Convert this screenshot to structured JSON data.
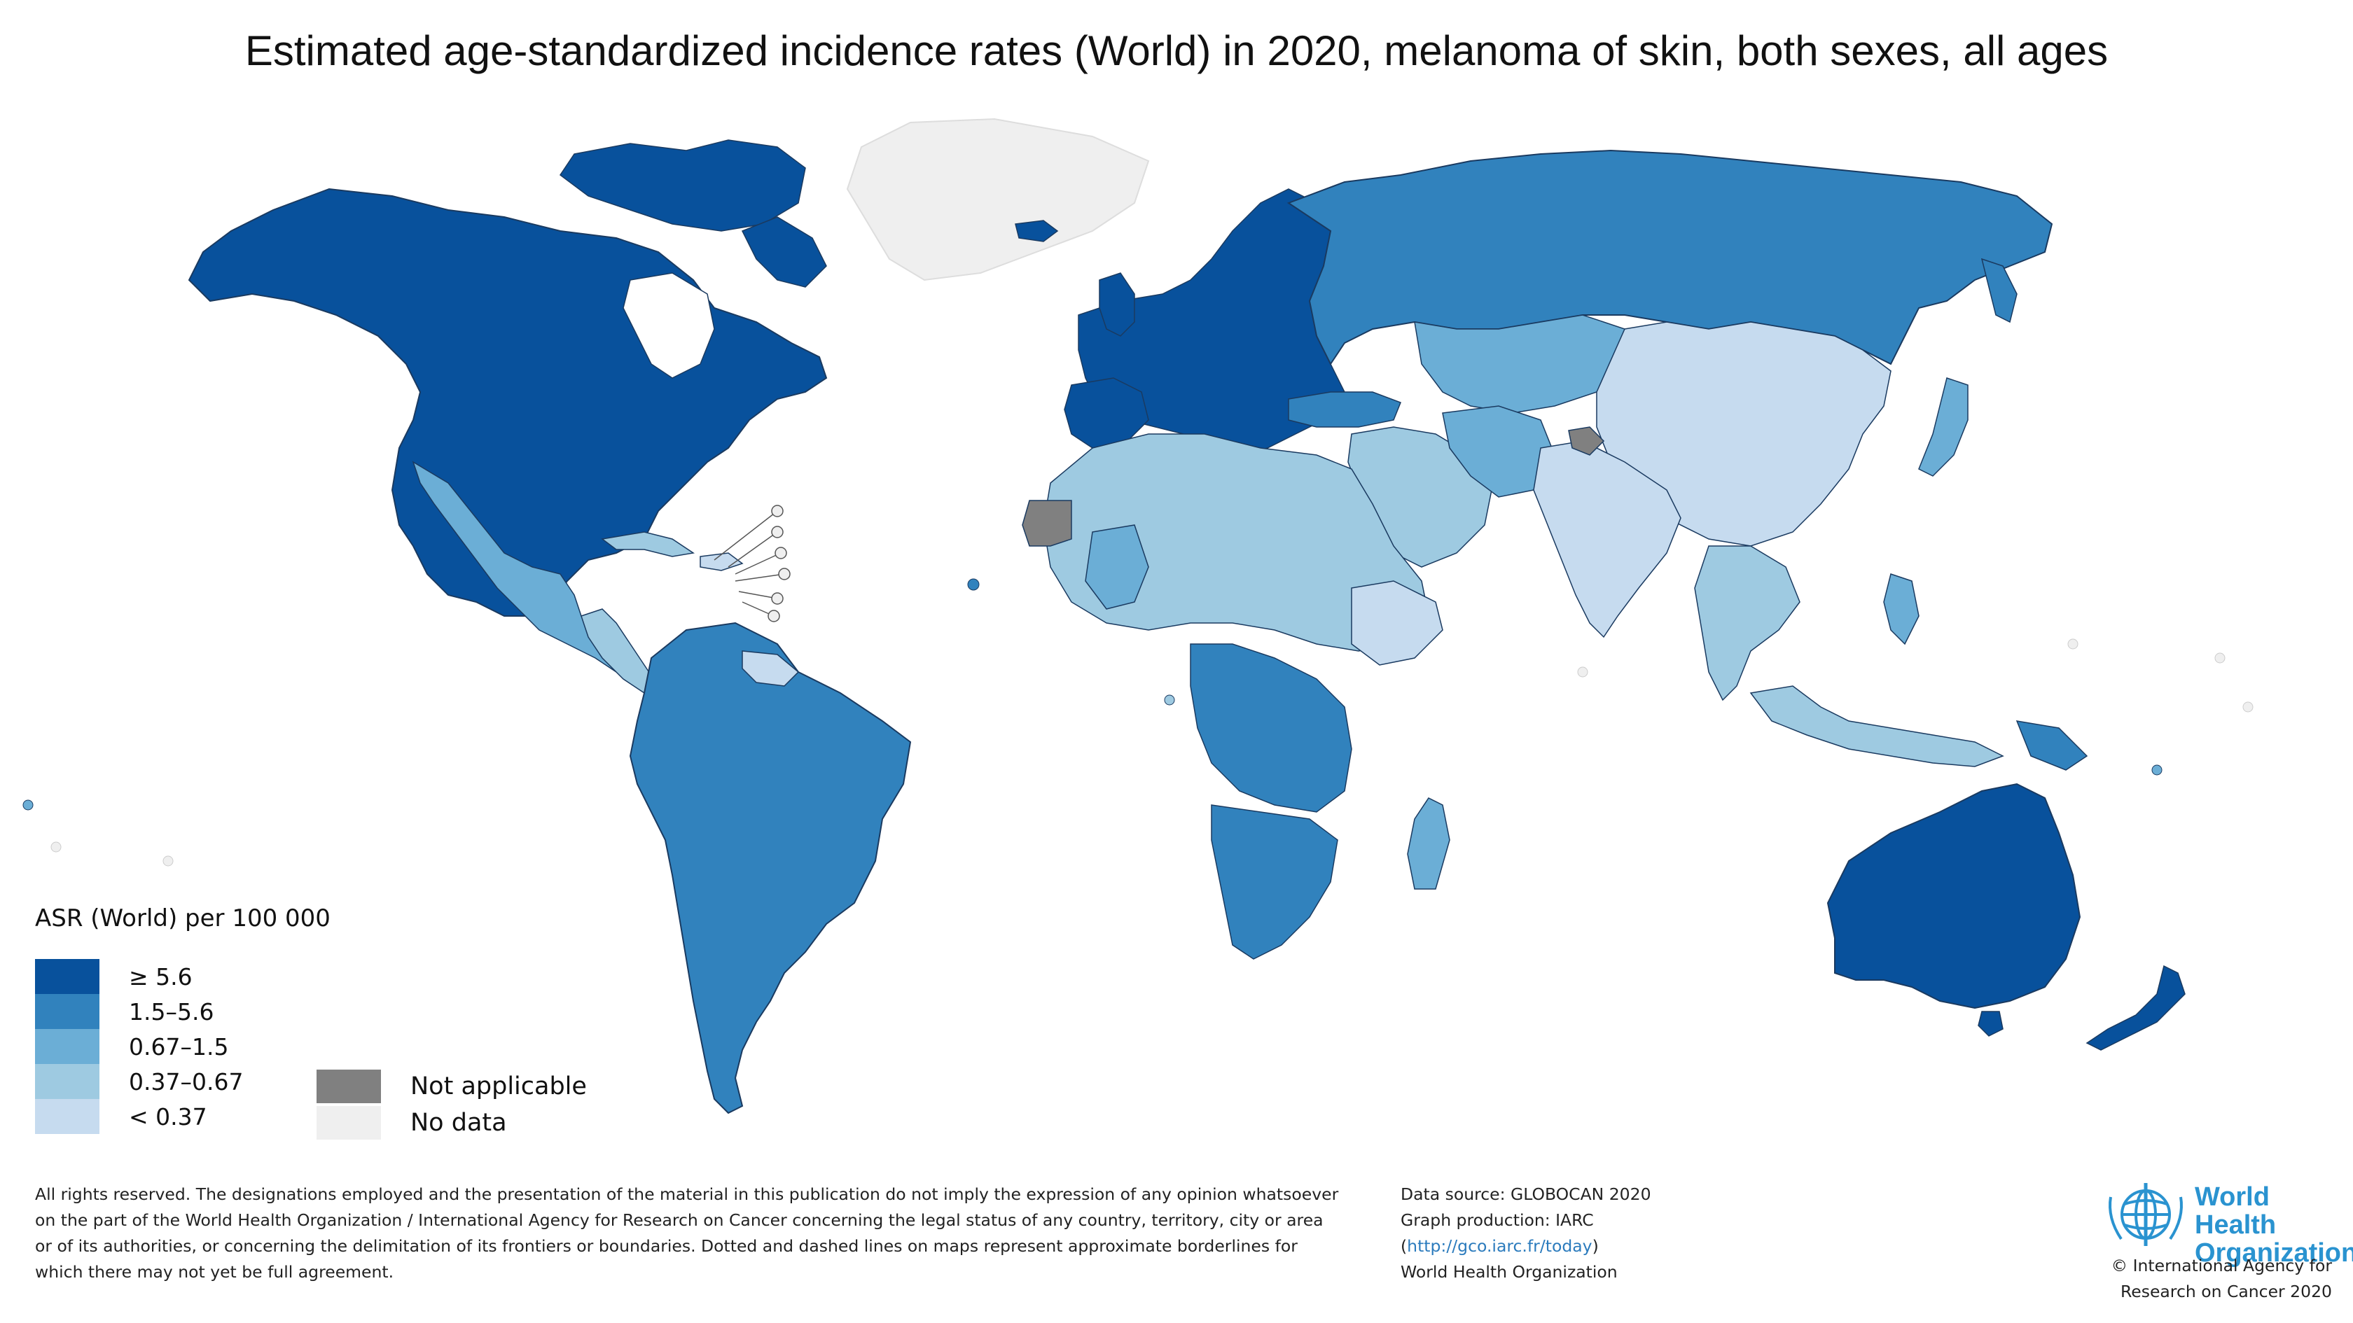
{
  "title": "Estimated age-standardized incidence rates (World) in 2020, melanoma of skin, both sexes, all ages",
  "legend": {
    "title": "ASR (World) per 100 000",
    "classes": [
      {
        "label": "≥ 5.6",
        "color": "#08519c"
      },
      {
        "label": "1.5–5.6",
        "color": "#3182bd"
      },
      {
        "label": "0.67–1.5",
        "color": "#6baed6"
      },
      {
        "label": "0.37–0.67",
        "color": "#9ecae1"
      },
      {
        "label": "< 0.37",
        "color": "#c6dbef"
      }
    ],
    "not_applicable": {
      "label": "Not applicable",
      "color": "#808080"
    },
    "no_data": {
      "label": "No data",
      "color": "#efefef"
    }
  },
  "regions": [
    {
      "name": "North America",
      "class": "≥ 5.6"
    },
    {
      "name": "Greenland",
      "class": "No data"
    },
    {
      "name": "Northern & Western Europe",
      "class": "≥ 5.6"
    },
    {
      "name": "Australia",
      "class": "≥ 5.6"
    },
    {
      "name": "New Zealand",
      "class": "≥ 5.6"
    },
    {
      "name": "Russia",
      "class": "1.5–5.6"
    },
    {
      "name": "South America",
      "class": "1.5–5.6"
    },
    {
      "name": "Southern Africa",
      "class": "1.5–5.6"
    },
    {
      "name": "Central Asia",
      "class": "0.67–1.5"
    },
    {
      "name": "Mexico",
      "class": "0.67–1.5"
    },
    {
      "name": "Northern Africa",
      "class": "0.37–0.67"
    },
    {
      "name": "China",
      "class": "< 0.37"
    },
    {
      "name": "India",
      "class": "< 0.37"
    },
    {
      "name": "Western Sahara",
      "class": "Not applicable"
    }
  ],
  "footer": {
    "disclaimer": [
      "All rights reserved. The designations employed and the presentation of the material in this publication do not imply the expression of any opinion whatsoever",
      "on the part of the World Health Organization / International Agency for Research on Cancer concerning the legal status of any country, territory, city or area",
      "or of its authorities, or concerning the delimitation of its frontiers or boundaries. Dotted and dashed lines on maps represent approximate borderlines for",
      "which there may not yet be full agreement."
    ],
    "source": {
      "line1": "Data source: GLOBOCAN 2020",
      "line2": "Graph production: IARC",
      "link_open": "(",
      "link": "http://gco.iarc.fr/today",
      "link_close": ")",
      "line4": "World Health Organization"
    },
    "logo_text": [
      "World Health",
      "Organization"
    ],
    "copyright": [
      "© International Agency for",
      "Research on Cancer 2020"
    ]
  }
}
